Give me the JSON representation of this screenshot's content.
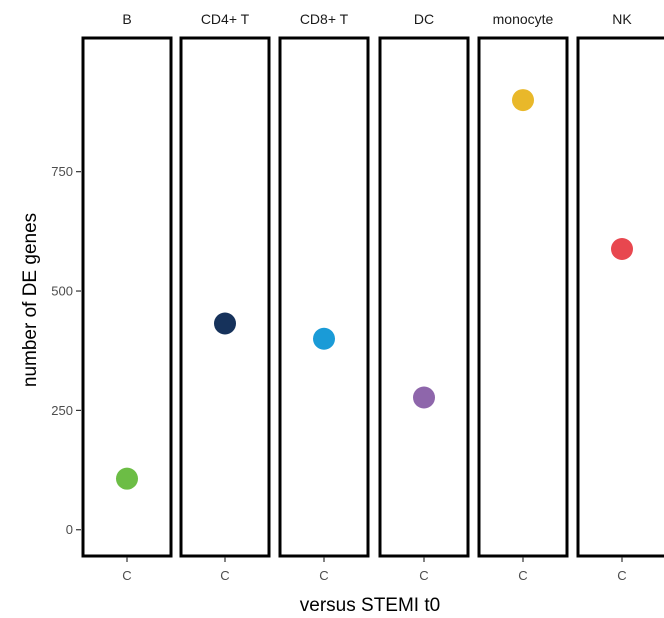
{
  "chart_data": {
    "type": "scatter",
    "facets": [
      "B",
      "CD4+ T",
      "CD8+ T",
      "DC",
      "monocyte",
      "NK"
    ],
    "x_categories": [
      "C"
    ],
    "xlabel": "versus STEMI t0",
    "ylabel": "number of DE genes",
    "y_ticks": [
      0,
      250,
      500,
      750
    ],
    "ylim": [
      -55,
      1030
    ],
    "grid": false,
    "series": [
      {
        "facet": "B",
        "x": "C",
        "y": 107,
        "color": "#6cbd45"
      },
      {
        "facet": "CD4+ T",
        "x": "C",
        "y": 432,
        "color": "#16325b"
      },
      {
        "facet": "CD8+ T",
        "x": "C",
        "y": 400,
        "color": "#1a9bd7"
      },
      {
        "facet": "DC",
        "x": "C",
        "y": 277,
        "color": "#8e66ab"
      },
      {
        "facet": "monocyte",
        "x": "C",
        "y": 900,
        "color": "#e9b82a"
      },
      {
        "facet": "NK",
        "x": "C",
        "y": 588,
        "color": "#e8474f"
      }
    ]
  }
}
